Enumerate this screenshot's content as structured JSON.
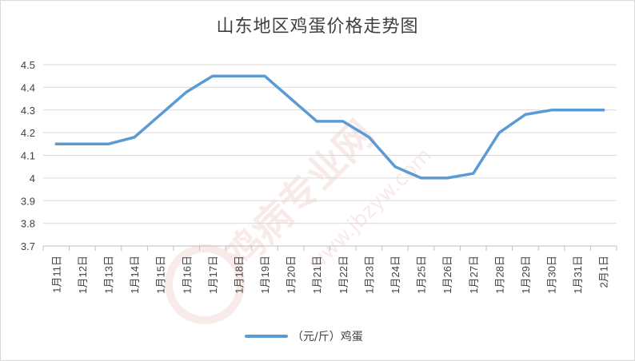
{
  "chart_data": {
    "type": "line",
    "title": "山东地区鸡蛋价格走势图",
    "categories": [
      "1月11日",
      "1月12日",
      "1月13日",
      "1月14日",
      "1月15日",
      "1月16日",
      "1月17日",
      "1月18日",
      "1月19日",
      "1月20日",
      "1月21日",
      "1月22日",
      "1月23日",
      "1月24日",
      "1月25日",
      "1月26日",
      "1月27日",
      "1月28日",
      "1月29日",
      "1月30日",
      "1月31日",
      "2月1日"
    ],
    "series": [
      {
        "name": "（元/斤）鸡蛋",
        "color": "#5b9bd5",
        "values": [
          4.15,
          4.15,
          4.15,
          4.18,
          4.28,
          4.38,
          4.45,
          4.45,
          4.45,
          4.35,
          4.25,
          4.25,
          4.18,
          4.05,
          4.0,
          4.0,
          4.02,
          4.2,
          4.28,
          4.3,
          4.3,
          4.3
        ]
      }
    ],
    "ylim": [
      3.7,
      4.5
    ],
    "yticks": [
      "3.7",
      "3.8",
      "3.9",
      "4",
      "4.1",
      "4.2",
      "4.3",
      "4.4",
      "4.5"
    ],
    "grid": true,
    "legend": "bottom",
    "xlabel": "",
    "ylabel": ""
  },
  "watermark": {
    "text": "鸡病专业网",
    "url": "www.jbzyw.com",
    "color": "#c0392b"
  }
}
